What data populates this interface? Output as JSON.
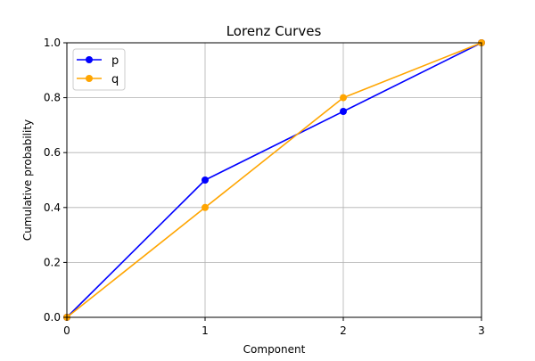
{
  "chart_data": {
    "type": "line",
    "title": "Lorenz Curves",
    "xlabel": "Component",
    "ylabel": "Cumulative probability",
    "x": [
      0,
      1,
      2,
      3
    ],
    "xlim": [
      0,
      3
    ],
    "ylim": [
      0,
      1
    ],
    "x_ticks": [
      "0",
      "1",
      "2",
      "3"
    ],
    "y_ticks": [
      "0.0",
      "0.2",
      "0.4",
      "0.6",
      "0.8",
      "1.0"
    ],
    "grid": true,
    "legend_position": "upper-left",
    "series": [
      {
        "name": "p",
        "color": "#0000ff",
        "marker": "circle",
        "values": [
          0.0,
          0.5,
          0.75,
          1.0
        ]
      },
      {
        "name": "q",
        "color": "#ffa500",
        "marker": "circle",
        "values": [
          0.0,
          0.4,
          0.8,
          1.0
        ]
      }
    ]
  }
}
